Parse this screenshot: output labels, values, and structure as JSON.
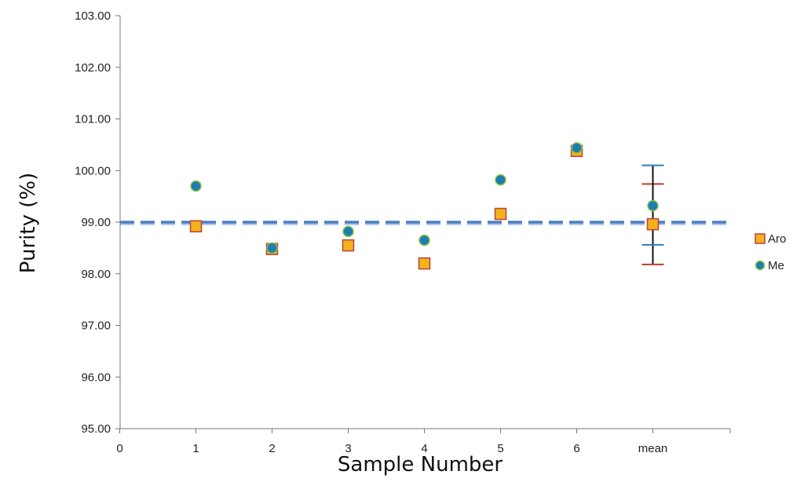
{
  "chart_data": {
    "type": "scatter",
    "xlabel": "Sample Number",
    "ylabel": "Purity (%)",
    "xlim": [
      0,
      8
    ],
    "ylim": [
      95.0,
      103.0
    ],
    "x_ticks": [
      {
        "value": 0,
        "label": "0"
      },
      {
        "value": 1,
        "label": "1"
      },
      {
        "value": 2,
        "label": "2"
      },
      {
        "value": 3,
        "label": "3"
      },
      {
        "value": 4,
        "label": "4"
      },
      {
        "value": 5,
        "label": "5"
      },
      {
        "value": 6,
        "label": "6"
      },
      {
        "value": 7,
        "label": "mean"
      }
    ],
    "y_ticks": [
      "95.00",
      "96.00",
      "97.00",
      "98.00",
      "99.00",
      "100.00",
      "101.00",
      "102.00",
      "103.00"
    ],
    "reference_line": {
      "y": 99.0,
      "style": "dashed",
      "color": "#4a7ec2"
    },
    "series": [
      {
        "name": "Aro",
        "marker": "square",
        "color": "#f5b21b",
        "edge_color": "#b5443b",
        "points": [
          [
            1,
            98.92
          ],
          [
            2,
            98.48
          ],
          [
            3,
            98.55
          ],
          [
            4,
            98.2
          ],
          [
            5,
            99.16
          ],
          [
            6,
            100.38
          ],
          [
            7,
            98.96
          ]
        ],
        "error_bar": {
          "x": 7,
          "low": 98.18,
          "high": 99.74,
          "cap_color": "#c0392b"
        }
      },
      {
        "name": "Me",
        "marker": "circle",
        "color": "#1f7db3",
        "edge_color": "#8cc63f",
        "points": [
          [
            1,
            99.7
          ],
          [
            2,
            98.5
          ],
          [
            3,
            98.82
          ],
          [
            4,
            98.65
          ],
          [
            5,
            99.82
          ],
          [
            6,
            100.44
          ],
          [
            7,
            99.32
          ]
        ],
        "error_bar": {
          "x": 7,
          "low": 98.56,
          "high": 100.1,
          "cap_color": "#2a7fb8"
        }
      }
    ],
    "legend": {
      "position": "right"
    },
    "grid": false
  }
}
